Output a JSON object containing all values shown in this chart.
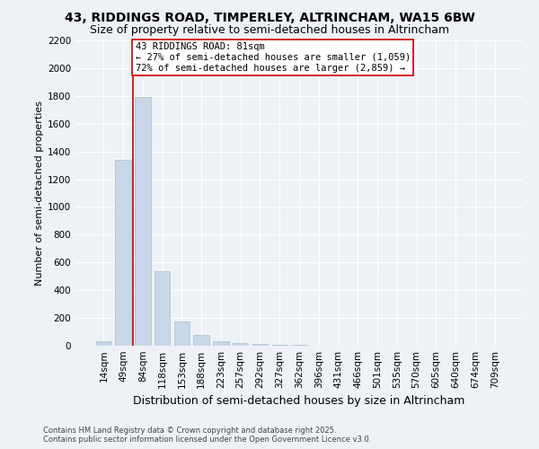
{
  "title": "43, RIDDINGS ROAD, TIMPERLEY, ALTRINCHAM, WA15 6BW",
  "subtitle": "Size of property relative to semi-detached houses in Altrincham",
  "xlabel": "Distribution of semi-detached houses by size in Altrincham",
  "ylabel": "Number of semi-detached properties",
  "footer_line1": "Contains HM Land Registry data © Crown copyright and database right 2025.",
  "footer_line2": "Contains public sector information licensed under the Open Government Licence v3.0.",
  "categories": [
    "14sqm",
    "49sqm",
    "84sqm",
    "118sqm",
    "153sqm",
    "188sqm",
    "223sqm",
    "257sqm",
    "292sqm",
    "327sqm",
    "362sqm",
    "396sqm",
    "431sqm",
    "466sqm",
    "501sqm",
    "535sqm",
    "570sqm",
    "605sqm",
    "640sqm",
    "674sqm",
    "709sqm"
  ],
  "values": [
    35,
    1340,
    1790,
    540,
    175,
    80,
    30,
    20,
    15,
    8,
    5,
    0,
    0,
    0,
    0,
    0,
    0,
    0,
    0,
    0,
    0
  ],
  "bar_color": "#c8d8e8",
  "bar_edge_color": "#a8bfcf",
  "property_label": "43 RIDDINGS ROAD: 81sqm",
  "annotation_line1": "← 27% of semi-detached houses are smaller (1,059)",
  "annotation_line2": "72% of semi-detached houses are larger (2,859) →",
  "vline_color": "#cc0000",
  "annotation_box_edgecolor": "#cc0000",
  "background_color": "#eef2f6",
  "grid_color": "#ffffff",
  "ylim": [
    0,
    2200
  ],
  "yticks": [
    0,
    200,
    400,
    600,
    800,
    1000,
    1200,
    1400,
    1600,
    1800,
    2000,
    2200
  ],
  "title_fontsize": 10,
  "subtitle_fontsize": 9,
  "xlabel_fontsize": 9,
  "ylabel_fontsize": 8,
  "tick_fontsize": 7.5,
  "footer_fontsize": 6,
  "annotation_fontsize": 7.5,
  "vline_x": 1.5
}
